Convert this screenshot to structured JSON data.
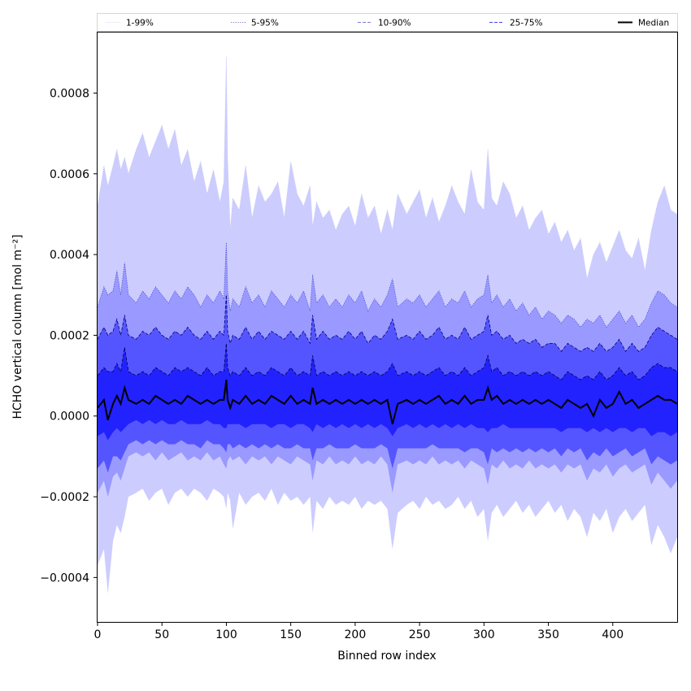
{
  "chart_data": {
    "type": "area",
    "title": "",
    "xlabel": "Binned row index",
    "ylabel": "HCHO vertical column [mol m⁻²]",
    "xlim": [
      0,
      450
    ],
    "ylim": [
      -0.00051,
      0.00095
    ],
    "xticks": [
      0,
      50,
      100,
      150,
      200,
      250,
      300,
      350,
      400
    ],
    "xtick_labels": [
      "0",
      "50",
      "100",
      "150",
      "200",
      "250",
      "300",
      "350",
      "400"
    ],
    "yticks": [
      -0.0004,
      -0.0002,
      0.0,
      0.0002,
      0.0004,
      0.0006,
      0.0008
    ],
    "ytick_labels": [
      "−0.0004",
      "−0.0002",
      "0.0000",
      "0.0002",
      "0.0004",
      "0.0006",
      "0.0008"
    ],
    "grid": false,
    "legend_position": "top",
    "colors": {
      "band_1_99": "#ccccff",
      "band_5_95": "#9999ff",
      "band_10_90": "#5555ff",
      "band_25_75": "#2222ff",
      "line_1_99": "#c8c8f0",
      "line_5_95": "#4848c8",
      "line_10_90": "#000080",
      "line_25_75": "#000050",
      "median": "#000000",
      "frame": "#000000"
    },
    "x": [
      0,
      5,
      8,
      12,
      15,
      18,
      21,
      24,
      30,
      35,
      40,
      45,
      50,
      55,
      60,
      65,
      70,
      75,
      80,
      85,
      90,
      95,
      98,
      100,
      101,
      103,
      105,
      110,
      115,
      120,
      125,
      130,
      135,
      140,
      145,
      150,
      155,
      160,
      165,
      167,
      170,
      175,
      180,
      185,
      190,
      195,
      200,
      205,
      210,
      215,
      220,
      225,
      229,
      233,
      240,
      245,
      250,
      255,
      260,
      265,
      270,
      275,
      280,
      285,
      290,
      295,
      300,
      303,
      306,
      310,
      315,
      320,
      325,
      330,
      335,
      340,
      345,
      350,
      355,
      360,
      365,
      370,
      375,
      380,
      385,
      390,
      395,
      400,
      405,
      410,
      415,
      420,
      425,
      430,
      435,
      440,
      445,
      450
    ],
    "series": [
      {
        "name": "1-99%",
        "legend": "1-99%",
        "style": "dotted",
        "upper": [
          0.00052,
          0.00062,
          0.00057,
          0.00062,
          0.00066,
          0.00061,
          0.00064,
          0.0006,
          0.00066,
          0.0007,
          0.00064,
          0.00068,
          0.00072,
          0.00066,
          0.00071,
          0.00062,
          0.00066,
          0.00058,
          0.00063,
          0.00055,
          0.00061,
          0.00053,
          0.00058,
          0.00089,
          0.00064,
          0.00046,
          0.00054,
          0.00051,
          0.00062,
          0.00049,
          0.00057,
          0.00053,
          0.00055,
          0.00058,
          0.00049,
          0.00063,
          0.00055,
          0.00052,
          0.00057,
          0.00047,
          0.00053,
          0.00049,
          0.00051,
          0.00046,
          0.0005,
          0.00052,
          0.00047,
          0.00055,
          0.00049,
          0.00052,
          0.00045,
          0.00051,
          0.00046,
          0.00055,
          0.0005,
          0.00053,
          0.00056,
          0.00049,
          0.00054,
          0.00048,
          0.00052,
          0.00057,
          0.00053,
          0.0005,
          0.00061,
          0.00053,
          0.00051,
          0.00066,
          0.00054,
          0.00052,
          0.00058,
          0.00055,
          0.00049,
          0.00052,
          0.00046,
          0.00049,
          0.00051,
          0.00045,
          0.00048,
          0.00043,
          0.00046,
          0.00041,
          0.00044,
          0.00034,
          0.0004,
          0.00043,
          0.00038,
          0.00042,
          0.00046,
          0.00041,
          0.00039,
          0.00044,
          0.00036,
          0.00046,
          0.00053,
          0.00057,
          0.00051,
          0.0005
        ],
        "lower": [
          -0.00037,
          -0.00033,
          -0.00044,
          -0.00031,
          -0.00027,
          -0.00029,
          -0.00025,
          -0.0002,
          -0.00019,
          -0.00018,
          -0.00021,
          -0.00019,
          -0.00018,
          -0.00022,
          -0.00019,
          -0.00018,
          -0.0002,
          -0.00018,
          -0.00019,
          -0.00021,
          -0.00018,
          -0.00019,
          -0.0002,
          -0.00023,
          -0.00019,
          -0.00021,
          -0.00028,
          -0.00019,
          -0.00022,
          -0.0002,
          -0.00019,
          -0.00021,
          -0.00018,
          -0.00022,
          -0.00019,
          -0.00021,
          -0.0002,
          -0.00022,
          -0.0002,
          -0.00029,
          -0.00021,
          -0.00023,
          -0.0002,
          -0.00022,
          -0.00021,
          -0.00022,
          -0.0002,
          -0.00023,
          -0.00021,
          -0.00022,
          -0.00021,
          -0.00023,
          -0.00033,
          -0.00024,
          -0.00022,
          -0.00021,
          -0.00023,
          -0.0002,
          -0.00022,
          -0.00021,
          -0.00023,
          -0.00022,
          -0.0002,
          -0.00023,
          -0.00021,
          -0.00025,
          -0.00023,
          -0.00031,
          -0.00024,
          -0.00022,
          -0.00025,
          -0.00023,
          -0.00021,
          -0.00024,
          -0.00022,
          -0.00025,
          -0.00023,
          -0.00021,
          -0.00024,
          -0.00022,
          -0.00026,
          -0.00023,
          -0.00025,
          -0.0003,
          -0.00024,
          -0.00026,
          -0.00023,
          -0.00029,
          -0.00025,
          -0.00023,
          -0.00026,
          -0.00024,
          -0.00022,
          -0.00032,
          -0.00027,
          -0.0003,
          -0.00034,
          -0.0003
        ]
      },
      {
        "name": "5-95%",
        "legend": "5-95%",
        "style": "dotted",
        "upper": [
          0.00027,
          0.00032,
          0.0003,
          0.00031,
          0.00036,
          0.0003,
          0.00038,
          0.0003,
          0.00028,
          0.00031,
          0.00029,
          0.00032,
          0.0003,
          0.00028,
          0.00031,
          0.00029,
          0.00032,
          0.0003,
          0.00027,
          0.0003,
          0.00028,
          0.00031,
          0.00029,
          0.00043,
          0.00031,
          0.00026,
          0.00029,
          0.00027,
          0.00032,
          0.00028,
          0.0003,
          0.00027,
          0.00031,
          0.00029,
          0.00027,
          0.0003,
          0.00028,
          0.00031,
          0.00026,
          0.00035,
          0.00028,
          0.0003,
          0.00027,
          0.00029,
          0.00027,
          0.0003,
          0.00028,
          0.00031,
          0.00026,
          0.00029,
          0.00027,
          0.0003,
          0.00034,
          0.00027,
          0.00029,
          0.00028,
          0.0003,
          0.00027,
          0.00029,
          0.00031,
          0.00027,
          0.00029,
          0.00028,
          0.00031,
          0.00027,
          0.00029,
          0.0003,
          0.00035,
          0.00028,
          0.0003,
          0.00027,
          0.00029,
          0.00026,
          0.00028,
          0.00025,
          0.00027,
          0.00024,
          0.00026,
          0.00025,
          0.00023,
          0.00025,
          0.00024,
          0.00022,
          0.00024,
          0.00023,
          0.00025,
          0.00022,
          0.00024,
          0.00026,
          0.00023,
          0.00025,
          0.00022,
          0.00024,
          0.00028,
          0.00031,
          0.0003,
          0.00028,
          0.00027
        ],
        "lower": [
          -0.00019,
          -0.00016,
          -0.0002,
          -0.00015,
          -0.00014,
          -0.00016,
          -0.00013,
          -0.0001,
          -9e-05,
          -0.0001,
          -9e-05,
          -0.00011,
          -9e-05,
          -0.00011,
          -0.0001,
          -9e-05,
          -0.00011,
          -0.0001,
          -0.00011,
          -9e-05,
          -0.00011,
          -0.0001,
          -0.00012,
          -0.00013,
          -0.00011,
          -0.0001,
          -0.00011,
          -0.0001,
          -0.00012,
          -0.0001,
          -0.00011,
          -0.0001,
          -0.00012,
          -0.0001,
          -0.00011,
          -0.00012,
          -0.0001,
          -0.00011,
          -0.00012,
          -0.00016,
          -0.00011,
          -0.00012,
          -0.0001,
          -0.00012,
          -0.00011,
          -0.00012,
          -0.0001,
          -0.00012,
          -0.00011,
          -0.00012,
          -0.0001,
          -0.00012,
          -0.00019,
          -0.00012,
          -0.00011,
          -0.00012,
          -0.00011,
          -0.00012,
          -0.0001,
          -0.00012,
          -0.00011,
          -0.00012,
          -0.00011,
          -0.00013,
          -0.00011,
          -0.00012,
          -0.00013,
          -0.00017,
          -0.00012,
          -0.00013,
          -0.00011,
          -0.00013,
          -0.00012,
          -0.00013,
          -0.00011,
          -0.00013,
          -0.00012,
          -0.00013,
          -0.00012,
          -0.00014,
          -0.00012,
          -0.00013,
          -0.00012,
          -0.00016,
          -0.00013,
          -0.00014,
          -0.00012,
          -0.00015,
          -0.00013,
          -0.00012,
          -0.00014,
          -0.00013,
          -0.00012,
          -0.00017,
          -0.00014,
          -0.00016,
          -0.00018,
          -0.00016
        ]
      },
      {
        "name": "10-90%",
        "legend": "10-90%",
        "style": "dashed",
        "upper": [
          0.00019,
          0.00022,
          0.0002,
          0.00021,
          0.00024,
          0.0002,
          0.00025,
          0.0002,
          0.00019,
          0.00021,
          0.0002,
          0.00022,
          0.0002,
          0.00019,
          0.00021,
          0.0002,
          0.00022,
          0.0002,
          0.00019,
          0.00021,
          0.00019,
          0.00021,
          0.0002,
          0.0003,
          0.00021,
          0.00018,
          0.0002,
          0.00019,
          0.00022,
          0.00019,
          0.00021,
          0.00019,
          0.00021,
          0.0002,
          0.00019,
          0.00021,
          0.00019,
          0.00021,
          0.00018,
          0.00025,
          0.00019,
          0.00021,
          0.00019,
          0.0002,
          0.00019,
          0.00021,
          0.00019,
          0.00021,
          0.00018,
          0.0002,
          0.00019,
          0.00021,
          0.00024,
          0.00019,
          0.0002,
          0.00019,
          0.00021,
          0.00019,
          0.0002,
          0.00022,
          0.00019,
          0.0002,
          0.00019,
          0.00022,
          0.00019,
          0.0002,
          0.00021,
          0.00025,
          0.0002,
          0.00021,
          0.00019,
          0.0002,
          0.00018,
          0.00019,
          0.00018,
          0.00019,
          0.00017,
          0.00018,
          0.00018,
          0.00016,
          0.00018,
          0.00017,
          0.00016,
          0.00017,
          0.00016,
          0.00018,
          0.00016,
          0.00017,
          0.00019,
          0.00016,
          0.00018,
          0.00016,
          0.00017,
          0.0002,
          0.00022,
          0.00021,
          0.0002,
          0.00019
        ],
        "lower": [
          -0.00013,
          -0.00011,
          -0.00014,
          -0.0001,
          -0.0001,
          -0.00011,
          -9e-05,
          -7e-05,
          -6e-05,
          -7e-05,
          -6e-05,
          -7e-05,
          -6e-05,
          -7e-05,
          -7e-05,
          -6e-05,
          -7e-05,
          -7e-05,
          -8e-05,
          -6e-05,
          -7e-05,
          -7e-05,
          -8e-05,
          -9e-05,
          -7e-05,
          -7e-05,
          -8e-05,
          -7e-05,
          -8e-05,
          -7e-05,
          -8e-05,
          -7e-05,
          -8e-05,
          -7e-05,
          -8e-05,
          -8e-05,
          -7e-05,
          -8e-05,
          -8e-05,
          -0.00011,
          -8e-05,
          -8e-05,
          -7e-05,
          -8e-05,
          -8e-05,
          -8e-05,
          -7e-05,
          -8e-05,
          -8e-05,
          -8e-05,
          -7e-05,
          -8e-05,
          -0.00013,
          -8e-05,
          -8e-05,
          -8e-05,
          -8e-05,
          -8e-05,
          -7e-05,
          -8e-05,
          -8e-05,
          -8e-05,
          -8e-05,
          -9e-05,
          -8e-05,
          -8e-05,
          -9e-05,
          -0.00012,
          -8e-05,
          -9e-05,
          -8e-05,
          -9e-05,
          -8e-05,
          -9e-05,
          -8e-05,
          -9e-05,
          -8e-05,
          -9e-05,
          -8e-05,
          -0.0001,
          -8e-05,
          -9e-05,
          -8e-05,
          -0.00011,
          -9e-05,
          -0.0001,
          -8e-05,
          -0.0001,
          -9e-05,
          -8e-05,
          -0.0001,
          -9e-05,
          -8e-05,
          -0.00012,
          -0.0001,
          -0.00011,
          -0.00012,
          -0.00011
        ]
      },
      {
        "name": "25-75%",
        "legend": "25-75%",
        "style": "dashed",
        "upper": [
          0.0001,
          0.00012,
          0.00011,
          0.00011,
          0.00013,
          0.00011,
          0.00017,
          0.00011,
          0.0001,
          0.00011,
          0.0001,
          0.00012,
          0.00011,
          0.0001,
          0.00012,
          0.00011,
          0.00012,
          0.00011,
          0.0001,
          0.00012,
          0.0001,
          0.00011,
          0.00011,
          0.00018,
          0.00012,
          0.0001,
          0.00011,
          0.0001,
          0.00012,
          0.0001,
          0.00011,
          0.0001,
          0.00012,
          0.00011,
          0.0001,
          0.00012,
          0.0001,
          0.00011,
          0.0001,
          0.00015,
          0.0001,
          0.00011,
          0.0001,
          0.00011,
          0.0001,
          0.00011,
          0.0001,
          0.00011,
          0.0001,
          0.00011,
          0.0001,
          0.00011,
          0.00013,
          0.0001,
          0.00011,
          0.0001,
          0.00011,
          0.0001,
          0.00011,
          0.00012,
          0.0001,
          0.00011,
          0.0001,
          0.00012,
          0.0001,
          0.00011,
          0.00012,
          0.00015,
          0.00011,
          0.00012,
          0.0001,
          0.00011,
          0.0001,
          0.00011,
          0.0001,
          0.00011,
          0.0001,
          0.00011,
          0.0001,
          9e-05,
          0.00011,
          0.0001,
          9e-05,
          0.0001,
          9e-05,
          0.00011,
          9e-05,
          0.0001,
          0.00012,
          0.0001,
          0.00011,
          9e-05,
          0.0001,
          0.00012,
          0.00013,
          0.00012,
          0.00012,
          0.00011
        ],
        "lower": [
          -5e-05,
          -4e-05,
          -6e-05,
          -4e-05,
          -3e-05,
          -4e-05,
          -3e-05,
          -2e-05,
          -1e-05,
          -2e-05,
          -1e-05,
          -2e-05,
          -1e-05,
          -2e-05,
          -2e-05,
          -1e-05,
          -2e-05,
          -2e-05,
          -2e-05,
          -1e-05,
          -2e-05,
          -2e-05,
          -3e-05,
          -3e-05,
          -2e-05,
          -2e-05,
          -2e-05,
          -2e-05,
          -3e-05,
          -2e-05,
          -2e-05,
          -2e-05,
          -3e-05,
          -2e-05,
          -2e-05,
          -3e-05,
          -2e-05,
          -2e-05,
          -3e-05,
          -4e-05,
          -2e-05,
          -3e-05,
          -2e-05,
          -3e-05,
          -2e-05,
          -3e-05,
          -2e-05,
          -3e-05,
          -2e-05,
          -3e-05,
          -2e-05,
          -3e-05,
          -5e-05,
          -3e-05,
          -2e-05,
          -3e-05,
          -2e-05,
          -3e-05,
          -2e-05,
          -3e-05,
          -2e-05,
          -3e-05,
          -2e-05,
          -3e-05,
          -2e-05,
          -3e-05,
          -3e-05,
          -4e-05,
          -3e-05,
          -3e-05,
          -2e-05,
          -3e-05,
          -3e-05,
          -3e-05,
          -3e-05,
          -3e-05,
          -3e-05,
          -3e-05,
          -3e-05,
          -4e-05,
          -3e-05,
          -3e-05,
          -3e-05,
          -4e-05,
          -3e-05,
          -4e-05,
          -3e-05,
          -4e-05,
          -3e-05,
          -3e-05,
          -4e-05,
          -3e-05,
          -3e-05,
          -5e-05,
          -4e-05,
          -4e-05,
          -5e-05,
          -4e-05
        ]
      },
      {
        "name": "Median",
        "legend": "Median",
        "style": "solid",
        "values": [
          2e-05,
          4e-05,
          -1e-05,
          3e-05,
          5e-05,
          3e-05,
          7e-05,
          4e-05,
          3e-05,
          4e-05,
          3e-05,
          5e-05,
          4e-05,
          3e-05,
          4e-05,
          3e-05,
          5e-05,
          4e-05,
          3e-05,
          4e-05,
          3e-05,
          4e-05,
          4e-05,
          9e-05,
          4e-05,
          2e-05,
          4e-05,
          3e-05,
          5e-05,
          3e-05,
          4e-05,
          3e-05,
          5e-05,
          4e-05,
          3e-05,
          5e-05,
          3e-05,
          4e-05,
          3e-05,
          7e-05,
          3e-05,
          4e-05,
          3e-05,
          4e-05,
          3e-05,
          4e-05,
          3e-05,
          4e-05,
          3e-05,
          4e-05,
          3e-05,
          4e-05,
          -2e-05,
          3e-05,
          4e-05,
          3e-05,
          4e-05,
          3e-05,
          4e-05,
          5e-05,
          3e-05,
          4e-05,
          3e-05,
          5e-05,
          3e-05,
          4e-05,
          4e-05,
          7e-05,
          4e-05,
          5e-05,
          3e-05,
          4e-05,
          3e-05,
          4e-05,
          3e-05,
          4e-05,
          3e-05,
          4e-05,
          3e-05,
          2e-05,
          4e-05,
          3e-05,
          2e-05,
          3e-05,
          0.0,
          4e-05,
          2e-05,
          3e-05,
          6e-05,
          3e-05,
          4e-05,
          2e-05,
          3e-05,
          4e-05,
          5e-05,
          4e-05,
          4e-05,
          3e-05
        ]
      }
    ]
  }
}
